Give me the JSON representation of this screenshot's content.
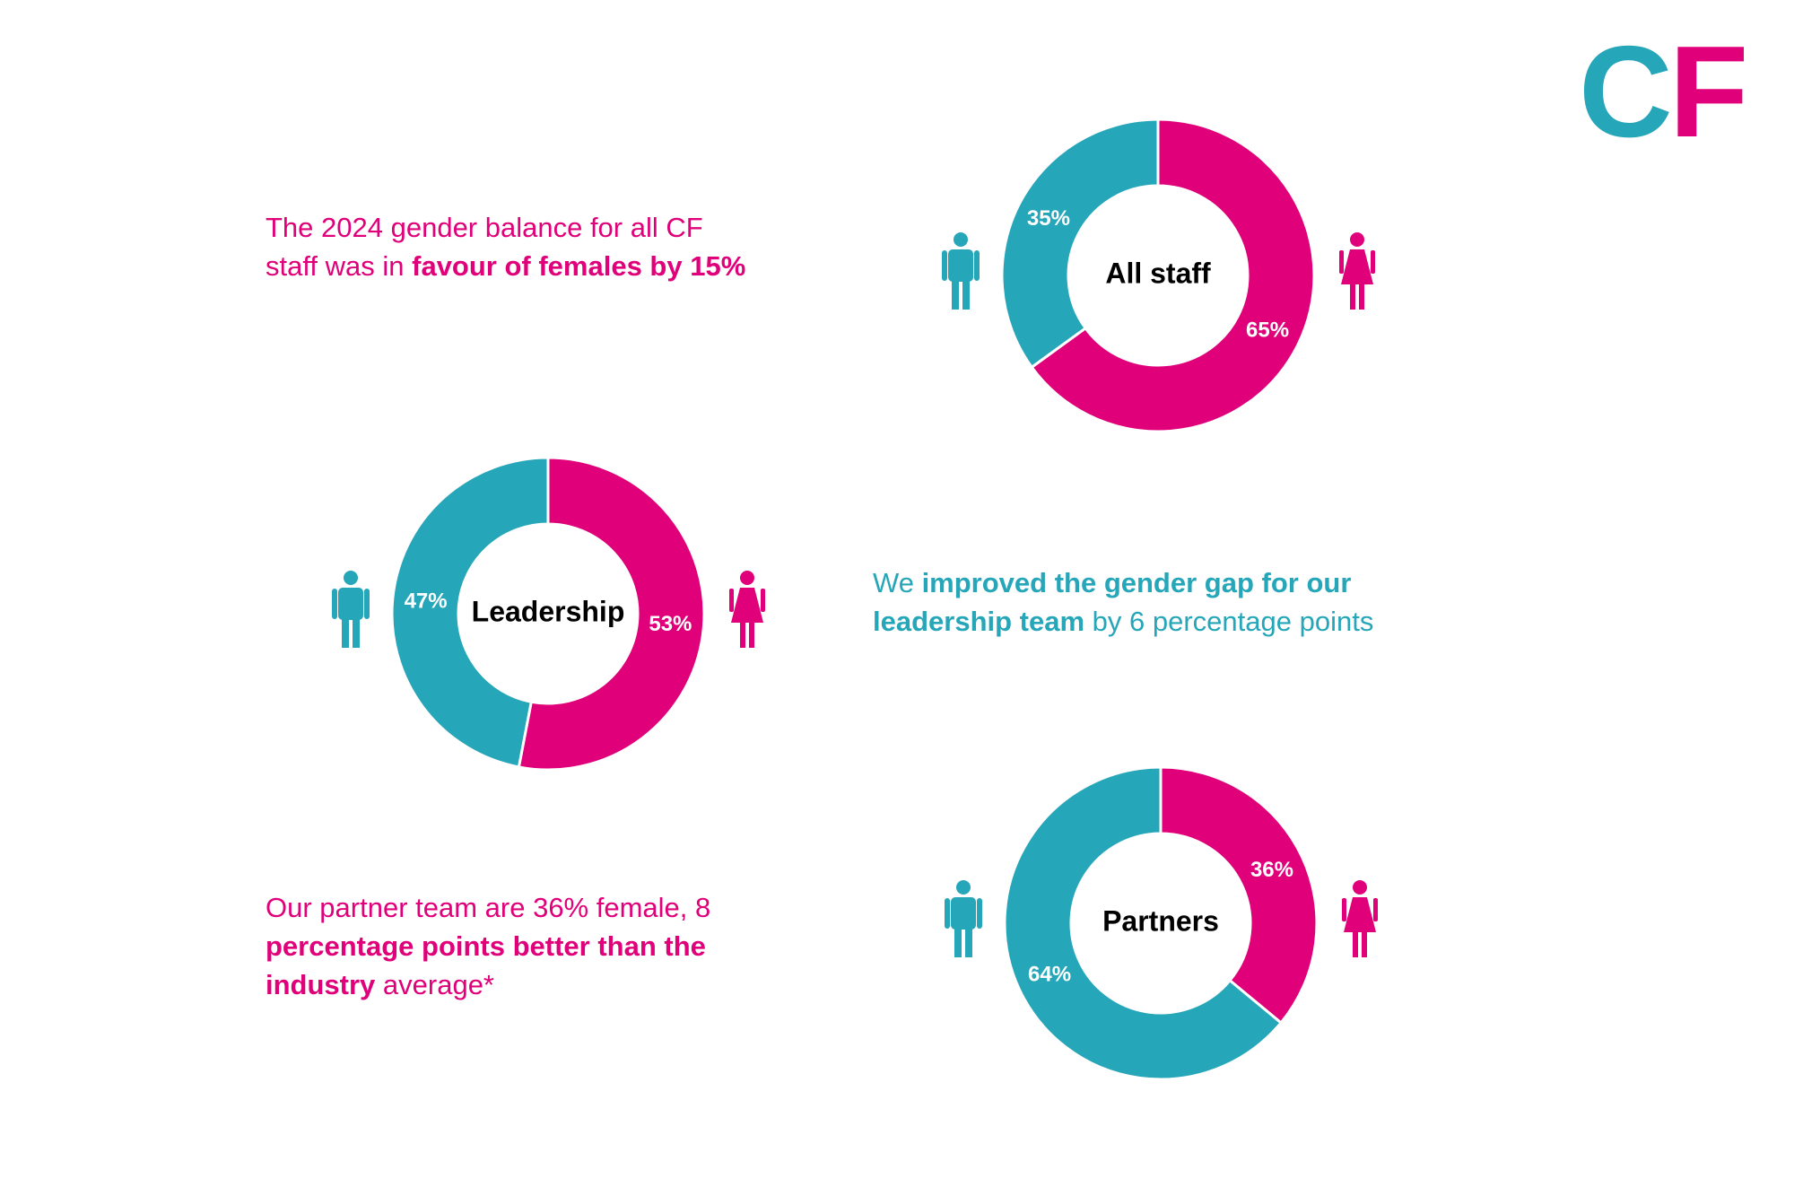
{
  "logo": [
    {
      "text": "C",
      "color": "#26a6b9"
    },
    {
      "text": "F",
      "color": "#e0007a"
    }
  ],
  "texts": [
    {
      "color": "#e0007a",
      "lines": [
        [
          {
            "text": "The 2024 gender balance for all CF",
            "bold": false
          }
        ],
        [
          {
            "text": "staff was in ",
            "bold": false
          },
          {
            "text": "favour of females by 15%",
            "bold": true
          }
        ]
      ]
    },
    {
      "color": "#26a6b9",
      "lines": [
        [
          {
            "text": "We ",
            "bold": false
          },
          {
            "text": "improved the gender gap for our",
            "bold": true
          }
        ],
        [
          {
            "text": "leadership team",
            "bold": true
          },
          {
            "text": " by 6 percentage points",
            "bold": false
          }
        ]
      ]
    },
    {
      "color": "#e0007a",
      "lines": [
        [
          {
            "text": "Our partner team are 36% female, 8",
            "bold": false
          }
        ],
        [
          {
            "text": "percentage points better than the",
            "bold": true
          }
        ],
        [
          {
            "text": "industry",
            "bold": true
          },
          {
            "text": " average*",
            "bold": false
          }
        ]
      ]
    }
  ],
  "chart_data": [
    {
      "type": "donut",
      "title": "All staff",
      "values": [
        65,
        35
      ],
      "value_labels": [
        "65%",
        "35%"
      ],
      "colors": [
        "#e0007a",
        "#26a6b9"
      ]
    },
    {
      "type": "donut",
      "title": "Leadership",
      "values": [
        53,
        47
      ],
      "value_labels": [
        "53%",
        "47%"
      ],
      "colors": [
        "#e0007a",
        "#26a6b9"
      ]
    },
    {
      "type": "donut",
      "title": "Partners",
      "values": [
        36,
        64
      ],
      "value_labels": [
        "36%",
        "64%"
      ],
      "colors": [
        "#e0007a",
        "#26a6b9"
      ]
    }
  ]
}
